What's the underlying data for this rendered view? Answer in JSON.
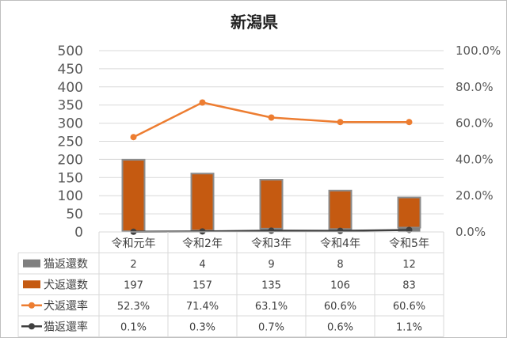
{
  "chart_data": {
    "type": "bar",
    "title": "新潟県",
    "categories": [
      "令和元年",
      "令和2年",
      "令和3年",
      "令和4年",
      "令和5年"
    ],
    "y_left": {
      "min": 0,
      "max": 500,
      "ticks": [
        0,
        50,
        100,
        150,
        200,
        250,
        300,
        350,
        400,
        450,
        500
      ]
    },
    "y_right": {
      "min": 0,
      "max": 100,
      "ticks": [
        "0.0%",
        "20.0%",
        "40.0%",
        "60.0%",
        "80.0%",
        "100.0%"
      ]
    },
    "gridlines": true,
    "legend": "data-table",
    "series": [
      {
        "name": "猫返還数",
        "type": "stacked-bar",
        "axis": "left",
        "color": "#7f7f7f",
        "values": [
          2,
          4,
          9,
          8,
          12
        ],
        "labels": [
          "2",
          "4",
          "9",
          "8",
          "12"
        ]
      },
      {
        "name": "犬返還数",
        "type": "stacked-bar",
        "axis": "left",
        "color": "#c55a11",
        "values": [
          197,
          157,
          135,
          106,
          83
        ],
        "labels": [
          "197",
          "157",
          "135",
          "106",
          "83"
        ]
      },
      {
        "name": "犬返還率",
        "type": "line",
        "axis": "right",
        "color": "#ed7d31",
        "values": [
          52.3,
          71.4,
          63.1,
          60.6,
          60.6
        ],
        "labels": [
          "52.3%",
          "71.4%",
          "63.1%",
          "60.6%",
          "60.6%"
        ]
      },
      {
        "name": "猫返還率",
        "type": "line",
        "axis": "right",
        "color": "#404040",
        "values": [
          0.1,
          0.3,
          0.7,
          0.6,
          1.1
        ],
        "labels": [
          "0.1%",
          "0.3%",
          "0.7%",
          "0.6%",
          "1.1%"
        ]
      }
    ]
  }
}
